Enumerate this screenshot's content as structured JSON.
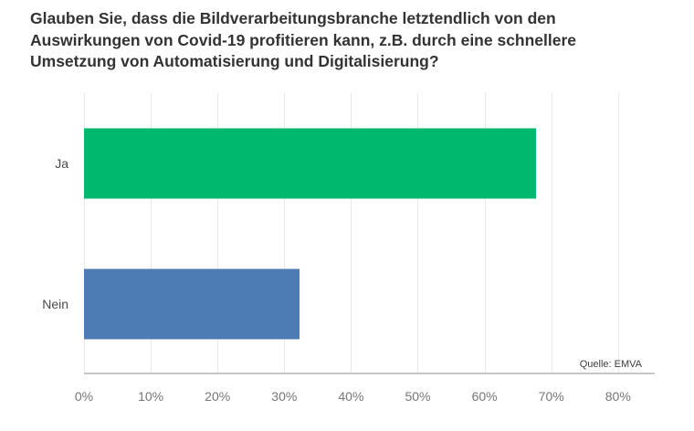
{
  "chart_data": {
    "type": "bar",
    "orientation": "horizontal",
    "title": "Glauben Sie, dass die Bildverarbeitungsbranche letztendlich von den Auswirkungen von Covid-19 profitieren kann, z.B. durch eine schnellere Umsetzung von Automatisierung und Digitalisierung?",
    "title_lines": [
      "Glauben Sie, dass die Bildverarbeitungsbranche letztendlich von den",
      "Auswirkungen von Covid-19 profitieren kann, z.B. durch eine schnellere",
      "Umsetzung von Automatisierung und Digitalisierung?"
    ],
    "categories": [
      "Ja",
      "Nein"
    ],
    "values": [
      67.7,
      32.3
    ],
    "bar_colors": [
      "#01b96e",
      "#4d7cb5"
    ],
    "x_ticks": [
      "0%",
      "10%",
      "20%",
      "30%",
      "40%",
      "50%",
      "60%",
      "70%",
      "80%"
    ],
    "xlim": [
      0,
      85.5
    ],
    "grid": "vertical",
    "legend": "none",
    "source": "Quelle: EMVA",
    "xlabel": "",
    "ylabel": ""
  },
  "colors": {
    "title_text": "#333333",
    "category_text": "#4a4a4a",
    "tick_text": "#757575",
    "gridline": "#e9e9e9",
    "axis_line": "#c6c6c6",
    "background": "#ffffff"
  }
}
